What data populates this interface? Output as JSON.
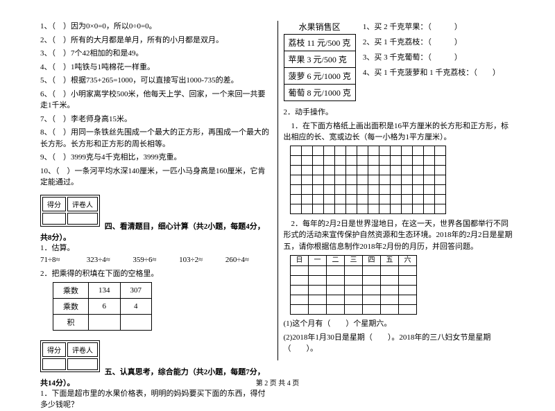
{
  "judge": {
    "items": [
      "因为0×0=0，所以0÷0=0。",
      "所有的大月都是单月，所有的小月都是双月。",
      "7个42相加的和是49。",
      "1吨铁与1吨棉花一样重。",
      "根据735+265=1000，可以直接写出1000-735的差。",
      "小明家离学校500米，他每天上学、回家，一个来回一共要走1千米。",
      "李老师身高15米。",
      "用同一条铁丝先围成一个最大的正方形，再围成一个最大的长方形。长方形和正方形的周长相等。",
      "3999克与4千克相比，3999克重。",
      "一条河平均水深140厘米，一匹小马身高是160厘米，它肯定能通过。"
    ],
    "prefix": [
      "1、（　）",
      "2、（　）",
      "3、（　）",
      "4、（　）",
      "5、（　）",
      "6、（　）",
      "7、（　）",
      "8、（　）",
      "9、（　）",
      "10、（　）"
    ]
  },
  "score": {
    "c1": "得分",
    "c2": "评卷人"
  },
  "sec4": {
    "title": "四、看清题目，细心计算（共2小题，每题4分，共8分）。",
    "q1": "1．估算。",
    "est": [
      "71÷8≈",
      "323÷4≈",
      "359÷6≈",
      "103÷2≈",
      "260÷4≈"
    ],
    "q2": "2．把乘得的积填在下面的空格里。",
    "table": {
      "r1": [
        "乘数",
        "134",
        "307"
      ],
      "r2": [
        "乘数",
        "6",
        "4"
      ],
      "r3": [
        "积",
        "",
        ""
      ]
    }
  },
  "sec5": {
    "title": "五、认真思考，综合能力（共2小题，每题7分，共14分）。",
    "q1": "1．下面是超市里的水果价格表，明明的妈妈要买下面的东西，得付多少钱呢？"
  },
  "fruit": {
    "title": "水果销售区",
    "rows": [
      "荔枝 11 元/500 克",
      "苹果 3 元/500 克",
      "菠萝 6 元/1000 克",
      "葡萄 8 元/1000 克"
    ],
    "buy": [
      "1、买 2 千克苹果：（　　　）",
      "2、买 1 千克荔枝：（　　　）",
      "3、买 3 千克葡萄：（　　　）",
      "4、买 1 千克菠萝和 1 千克荔枝：（　　）"
    ]
  },
  "hands": {
    "title": "2．动手操作。",
    "p1": "1．在下面方格纸上画出面积是16平方厘米的长方形和正方形，标出相应的长、宽或边长（每一小格为1平方厘米）。",
    "p2": "2．每年的2月2日是世界湿地日，在这一天，世界各国都举行不同形式的活动来宣传保护自然资源和生态环境。2018年的2月2日是星期五，请你根据信息制作2018年2月份的月历，并回答问题。",
    "days": [
      "日",
      "一",
      "二",
      "三",
      "四",
      "五",
      "六"
    ],
    "q1": "(1)这个月有（　　）个星期六。",
    "q2": "(2)2018年1月30日是星期（　　）。2018年的三八妇女节是星期（　　）。"
  },
  "footer": "第 2 页  共 4 页"
}
